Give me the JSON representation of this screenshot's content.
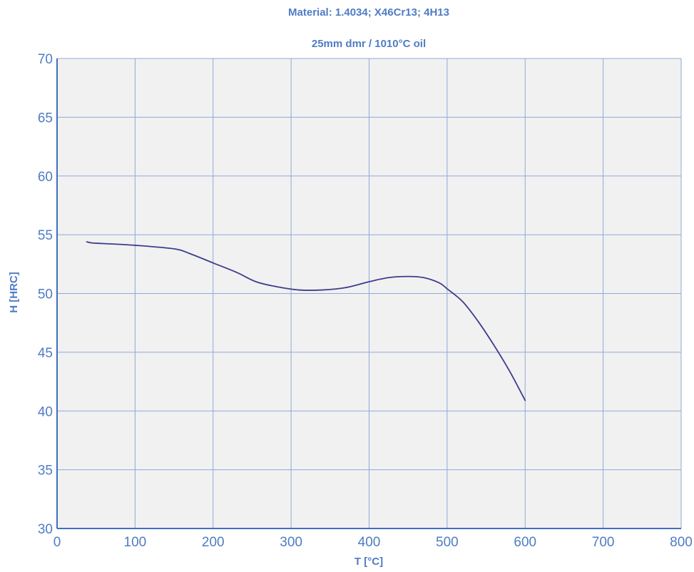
{
  "chart_data": {
    "type": "line",
    "title": "Material: 1.4034; X46Cr13; 4H13",
    "subtitle": "25mm dmr / 1010°C oil",
    "xlabel": "T [°C]",
    "ylabel": "H [HRC]",
    "xlim": [
      0,
      800
    ],
    "ylim": [
      30,
      70
    ],
    "xticks": [
      "0",
      "100",
      "200",
      "300",
      "400",
      "500",
      "600",
      "700",
      "800"
    ],
    "yticks": [
      "30",
      "35",
      "40",
      "45",
      "50",
      "55",
      "60",
      "65",
      "70"
    ],
    "grid": true,
    "series": [
      {
        "x": [
          38,
          45,
          60,
          100,
          150,
          170,
          200,
          230,
          255,
          280,
          310,
          340,
          370,
          400,
          425,
          450,
          470,
          490,
          500,
          520,
          540,
          560,
          580,
          600
        ],
        "y": [
          54.4,
          54.3,
          54.25,
          54.1,
          53.8,
          53.4,
          52.6,
          51.8,
          51.0,
          50.6,
          50.3,
          50.3,
          50.5,
          51.0,
          51.35,
          51.45,
          51.35,
          50.9,
          50.4,
          49.3,
          47.6,
          45.6,
          43.4,
          40.9
        ],
        "color": "#3d3d8c"
      }
    ],
    "colors": {
      "plot_background": "#f1f1f1",
      "grid": "#8fa9d6",
      "axis": "#3e6fc0",
      "text": "#4f7cc4"
    }
  }
}
